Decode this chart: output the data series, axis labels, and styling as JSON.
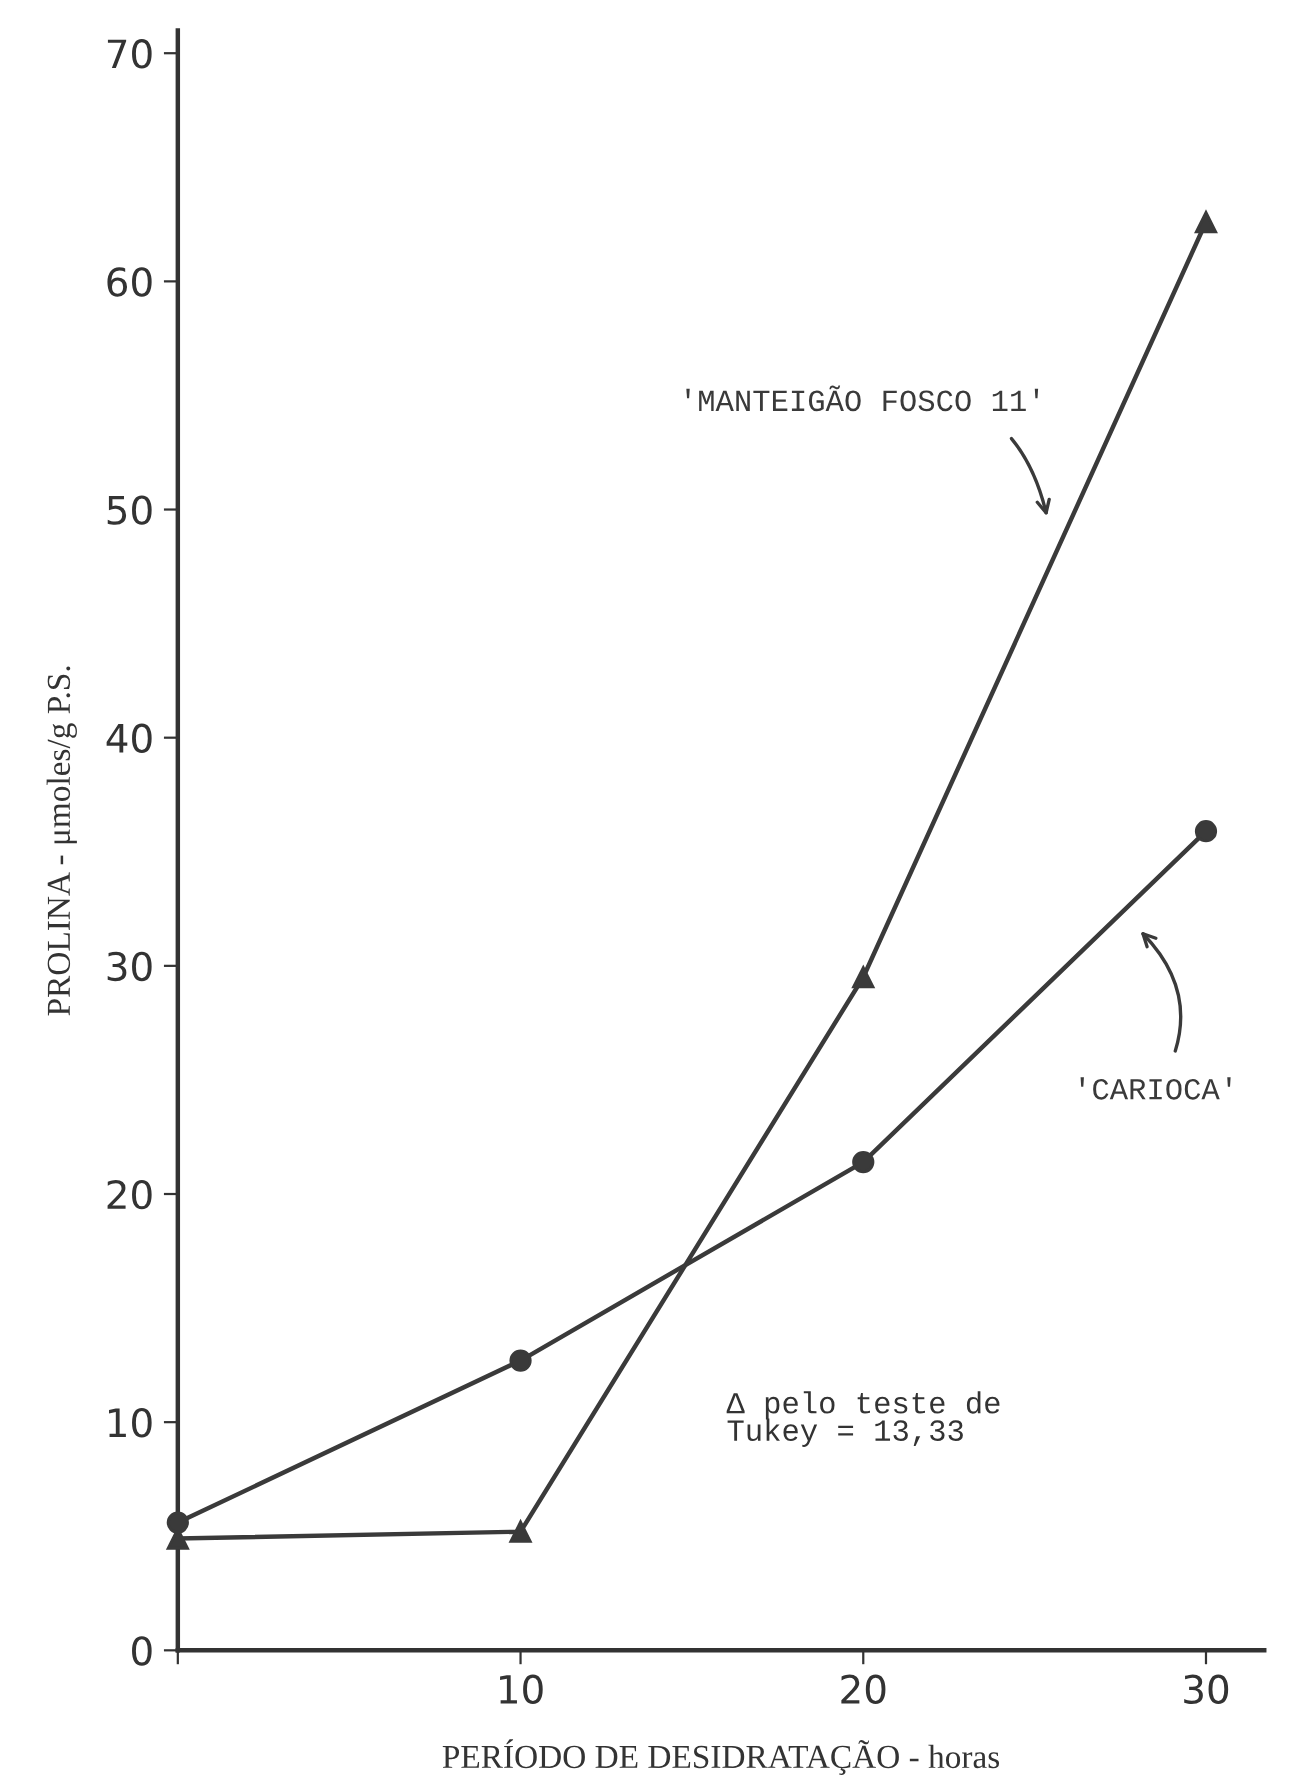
{
  "chart_data": {
    "type": "line",
    "xlabel": "PERÍODO DE DESIDRATAÇÃO - horas",
    "ylabel": "PROLINA - μmoles/g P.S.",
    "x": [
      0,
      10,
      20,
      30
    ],
    "series": [
      {
        "name": "'MANTEIGÃO FOSCO 11'",
        "color": "#3a3a3a",
        "marker": "triangle",
        "values": [
          4.9,
          5.2,
          29.5,
          62.6
        ]
      },
      {
        "name": "'CARIOCA'",
        "color": "#3a3a3a",
        "marker": "circle",
        "values": [
          5.6,
          12.7,
          21.4,
          35.9
        ]
      }
    ],
    "annotations": [
      "Δ pelo teste de\nTukey = 13,33"
    ],
    "xlim": [
      0,
      31.7
    ],
    "ylim": [
      0,
      71
    ],
    "xticks": [
      {
        "value": 0,
        "label": null
      },
      10,
      20,
      30
    ],
    "yticks": [
      0,
      10,
      20,
      30,
      40,
      50,
      60,
      70
    ],
    "grid": false,
    "legend": false,
    "line_style": "solid"
  }
}
